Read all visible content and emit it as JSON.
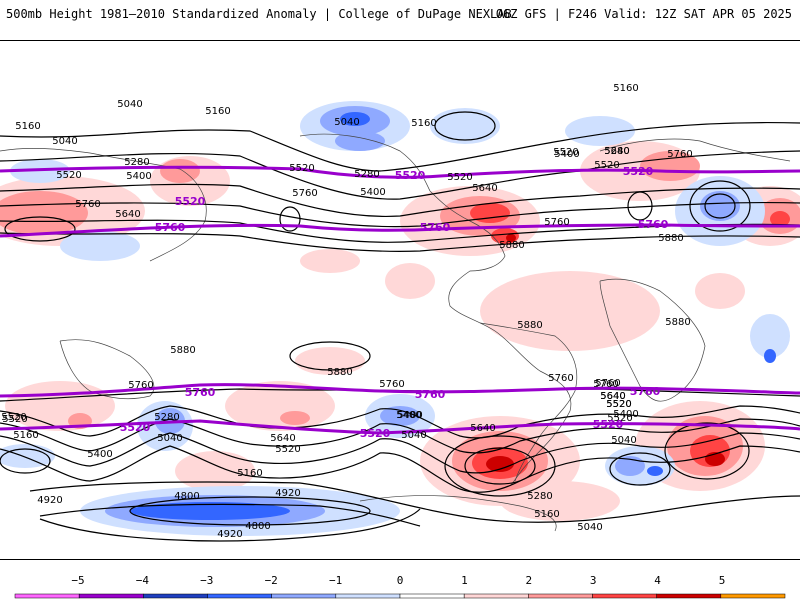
{
  "header": {
    "title": "500mb Height 1981–2010 Standardized Anomaly | College of DuPage NEXLAB",
    "run_info": "06Z GFS | F246 Valid: 12Z SAT APR 05 2025"
  },
  "colorbar": {
    "ticks": [
      "−5",
      "−4",
      "−3",
      "−2",
      "−1",
      "0",
      "1",
      "2",
      "3",
      "4",
      "5"
    ],
    "colors": [
      "#ff66ff",
      "#9900cc",
      "#1f3fbf",
      "#3366ff",
      "#8fa9ff",
      "#cfe0ff",
      "#ffffff",
      "#ffd6d6",
      "#ff9a9a",
      "#ff4444",
      "#cc0000",
      "#ff9900"
    ]
  },
  "contour_labels": [
    {
      "text": "5040"
    },
    {
      "text": "5160"
    },
    {
      "text": "5160"
    },
    {
      "text": "5040"
    },
    {
      "text": "5160"
    },
    {
      "text": "5160"
    },
    {
      "text": "5280"
    },
    {
      "text": "5400"
    },
    {
      "text": "5520"
    },
    {
      "text": "5520"
    },
    {
      "text": "5280"
    },
    {
      "text": "5400"
    },
    {
      "text": "5520"
    },
    {
      "text": "5640"
    },
    {
      "text": "5760"
    },
    {
      "text": "5760"
    },
    {
      "text": "5640"
    },
    {
      "text": "5520"
    },
    {
      "text": "5760"
    },
    {
      "text": "5400"
    },
    {
      "text": "5520"
    },
    {
      "text": "5280"
    },
    {
      "text": "5640"
    },
    {
      "text": "5760"
    },
    {
      "text": "5880"
    },
    {
      "text": "5880"
    },
    {
      "text": "5880"
    },
    {
      "text": "5880"
    },
    {
      "text": "5880"
    },
    {
      "text": "5880"
    },
    {
      "text": "5760"
    },
    {
      "text": "5760"
    },
    {
      "text": "5760"
    },
    {
      "text": "5760"
    },
    {
      "text": "5640"
    },
    {
      "text": "5520"
    },
    {
      "text": "5280"
    },
    {
      "text": "5040"
    },
    {
      "text": "5400"
    },
    {
      "text": "5640"
    },
    {
      "text": "5520"
    },
    {
      "text": "5400"
    },
    {
      "text": "5160"
    },
    {
      "text": "4920"
    },
    {
      "text": "4800"
    },
    {
      "text": "4920"
    },
    {
      "text": "4800"
    },
    {
      "text": "4920"
    },
    {
      "text": "5160"
    },
    {
      "text": "5040"
    },
    {
      "text": "5280"
    },
    {
      "text": "5520"
    },
    {
      "text": "5160"
    },
    {
      "text": "5040"
    },
    {
      "text": "5520"
    },
    {
      "text": "5640"
    },
    {
      "text": "5400"
    },
    {
      "text": "5520"
    },
    {
      "text": "5040"
    },
    {
      "text": "5640"
    },
    {
      "text": "5760"
    },
    {
      "text": "5400"
    },
    {
      "text": "5520"
    },
    {
      "text": "5040"
    }
  ],
  "purple_labels": [
    {
      "text": "5520"
    },
    {
      "text": "5520"
    },
    {
      "text": "5520"
    },
    {
      "text": "5760"
    },
    {
      "text": "5760"
    },
    {
      "text": "5760"
    },
    {
      "text": "5760"
    },
    {
      "text": "5760"
    },
    {
      "text": "5760"
    },
    {
      "text": "5520"
    },
    {
      "text": "5520"
    },
    {
      "text": "5520"
    }
  ]
}
